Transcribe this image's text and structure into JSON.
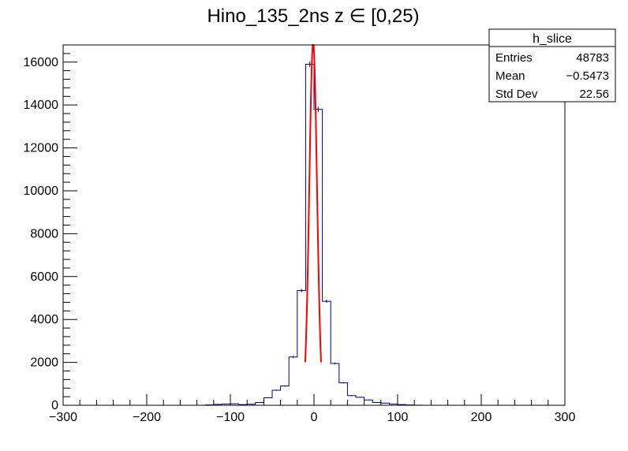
{
  "chart_data": {
    "type": "histogram",
    "title": "Hino_135_2ns z  ∈ [0,25)",
    "xlabel": "",
    "ylabel": "",
    "xlim": [
      -300,
      300
    ],
    "ylim": [
      0,
      16800
    ],
    "x_ticks": [
      "−300",
      "−200",
      "−100",
      "0",
      "100",
      "200",
      "300"
    ],
    "x_tick_values": [
      -300,
      -200,
      -100,
      0,
      100,
      200,
      300
    ],
    "y_ticks": [
      "0",
      "2000",
      "4000",
      "6000",
      "8000",
      "10000",
      "12000",
      "14000",
      "16000"
    ],
    "y_tick_values": [
      0,
      2000,
      4000,
      6000,
      8000,
      10000,
      12000,
      14000,
      16000
    ],
    "grid": false,
    "histogram": {
      "name": "h_slice",
      "color": "#000080",
      "bin_width": 10,
      "bins_start": [
        -130,
        -120,
        -110,
        -100,
        -90,
        -80,
        -70,
        -60,
        -50,
        -40,
        -30,
        -20,
        -10,
        0,
        10,
        20,
        30,
        40,
        50,
        60,
        70,
        80,
        90,
        100,
        110,
        120
      ],
      "counts": [
        20,
        40,
        60,
        70,
        30,
        50,
        130,
        350,
        700,
        900,
        2250,
        5350,
        15900,
        13800,
        4850,
        1950,
        1050,
        450,
        370,
        250,
        130,
        100,
        60,
        30,
        15,
        5
      ]
    },
    "fit": {
      "color": "#ff0000",
      "type": "gaussian",
      "x_range": [
        -10.5,
        8.5
      ],
      "constant": 16900,
      "mean": -1,
      "sigma": 4.6
    },
    "stats_box": {
      "title": "h_slice",
      "rows": [
        {
          "label": "Entries",
          "value": "48783"
        },
        {
          "label": "Mean",
          "value": "−0.5473"
        },
        {
          "label": "Std Dev",
          "value": "22.56"
        }
      ]
    }
  }
}
